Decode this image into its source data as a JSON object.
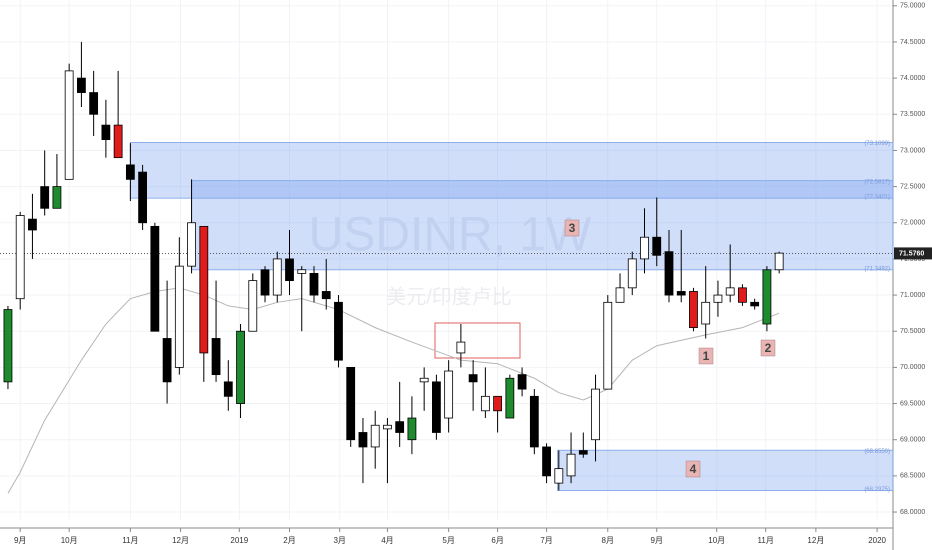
{
  "chart_data": {
    "type": "candlestick",
    "title": "USDINR, 1W",
    "subtitle": "美元/印度卢比",
    "open": [
      69.8,
      70.95,
      72.05,
      72.5,
      72.2,
      72.6,
      74.0,
      73.8,
      73.35,
      73.35,
      72.8,
      72.7,
      71.95,
      70.4,
      70.0,
      71.4,
      71.95,
      70.4,
      69.8,
      69.5,
      70.5,
      71.35,
      71.0,
      71.5,
      71.3,
      71.3,
      71.05,
      70.9,
      70.0,
      69.1,
      68.9,
      69.2,
      69.25,
      69.0,
      69.8,
      69.8,
      69.3,
      70.2,
      69.9,
      69.4,
      69.6,
      69.3,
      69.9,
      69.6,
      68.9,
      68.4,
      68.5,
      68.8,
      69.0,
      69.7,
      70.9,
      71.1,
      71.5,
      71.8,
      71.6,
      71.05,
      71.05,
      70.6,
      70.9,
      71.0,
      71.1,
      70.9,
      70.6,
      71.35
    ],
    "high": [
      70.85,
      72.15,
      72.4,
      73.0,
      72.95,
      74.2,
      74.5,
      74.1,
      73.7,
      74.1,
      73.1,
      72.8,
      72.0,
      71.2,
      71.8,
      72.6,
      71.95,
      71.2,
      70.1,
      70.6,
      71.3,
      71.4,
      71.6,
      71.9,
      71.4,
      71.4,
      71.5,
      71.0,
      70.0,
      69.3,
      69.4,
      69.3,
      69.8,
      69.6,
      70.0,
      69.9,
      70.1,
      70.6,
      70.1,
      70.0,
      69.6,
      69.9,
      70.0,
      69.7,
      68.95,
      68.85,
      69.1,
      69.1,
      69.9,
      71.0,
      71.3,
      71.6,
      72.2,
      72.35,
      71.9,
      71.9,
      71.1,
      71.4,
      71.2,
      71.7,
      71.15,
      70.95,
      71.4,
      71.6
    ],
    "low": [
      69.7,
      70.8,
      71.5,
      72.1,
      72.2,
      72.6,
      73.6,
      73.2,
      72.9,
      72.9,
      72.3,
      71.9,
      70.5,
      69.5,
      69.9,
      71.3,
      69.8,
      69.8,
      69.4,
      69.3,
      70.5,
      70.9,
      70.9,
      71.0,
      70.5,
      70.9,
      70.8,
      70.0,
      68.9,
      68.4,
      68.6,
      68.4,
      68.9,
      68.8,
      69.4,
      69.0,
      69.1,
      70.0,
      69.4,
      69.3,
      69.1,
      69.3,
      69.6,
      68.8,
      68.4,
      68.3,
      68.4,
      68.75,
      68.7,
      69.7,
      70.9,
      71.0,
      71.3,
      71.4,
      70.9,
      70.9,
      70.5,
      70.4,
      70.7,
      70.9,
      70.85,
      70.8,
      70.5,
      71.3
    ],
    "close": [
      70.8,
      72.1,
      71.9,
      72.2,
      72.5,
      74.1,
      73.8,
      73.5,
      73.15,
      72.9,
      72.6,
      72.0,
      70.5,
      69.8,
      71.4,
      72.0,
      70.2,
      69.9,
      69.6,
      70.5,
      71.2,
      71.0,
      71.5,
      71.2,
      71.35,
      71.0,
      70.95,
      70.1,
      69.0,
      68.9,
      69.2,
      69.15,
      69.1,
      69.3,
      69.85,
      69.1,
      69.95,
      70.35,
      69.8,
      69.6,
      69.4,
      69.85,
      69.7,
      68.9,
      68.5,
      68.6,
      68.8,
      68.85,
      69.7,
      70.9,
      71.1,
      71.5,
      71.8,
      71.55,
      71.0,
      71.0,
      70.55,
      70.9,
      71.0,
      71.1,
      70.9,
      70.85,
      71.35,
      71.58
    ],
    "colors": [
      "#1e8c2e",
      "#ffffff",
      "#000000",
      "#000000",
      "#1e8c2e",
      "#ffffff",
      "#000000",
      "#000000",
      "#000000",
      "#e01b1b",
      "#000000",
      "#000000",
      "#000000",
      "#000000",
      "#ffffff",
      "#ffffff",
      "#e01b1b",
      "#000000",
      "#000000",
      "#1e8c2e",
      "#ffffff",
      "#000000",
      "#ffffff",
      "#000000",
      "#ffffff",
      "#000000",
      "#000000",
      "#000000",
      "#000000",
      "#000000",
      "#ffffff",
      "#ffffff",
      "#000000",
      "#1e8c2e",
      "#ffffff",
      "#000000",
      "#ffffff",
      "#ffffff",
      "#000000",
      "#ffffff",
      "#e01b1b",
      "#1e8c2e",
      "#000000",
      "#000000",
      "#000000",
      "#ffffff",
      "#ffffff",
      "#000000",
      "#ffffff",
      "#ffffff",
      "#ffffff",
      "#ffffff",
      "#ffffff",
      "#000000",
      "#000000",
      "#000000",
      "#e01b1b",
      "#ffffff",
      "#ffffff",
      "#ffffff",
      "#e01b1b",
      "#000000",
      "#1e8c2e",
      "#ffffff"
    ],
    "ma": {
      "color": "#b5b5b5",
      "x": [
        0,
        1,
        3,
        6,
        8,
        10,
        12,
        14,
        16,
        18,
        20,
        22,
        24,
        27,
        30,
        33,
        37,
        40,
        43,
        45,
        47,
        49,
        51,
        53,
        57,
        60,
        63
      ],
      "values": [
        68.26,
        68.55,
        69.27,
        70.1,
        70.6,
        70.95,
        71.05,
        71.1,
        71.0,
        70.85,
        70.8,
        70.9,
        70.95,
        70.8,
        70.55,
        70.35,
        70.1,
        70.05,
        69.85,
        69.65,
        69.55,
        69.7,
        70.1,
        70.3,
        70.45,
        70.55,
        70.75
      ]
    },
    "zones": [
      {
        "from": 10,
        "top": 73.1099,
        "bottom": 72.3401,
        "top_label": "(73.1099)",
        "bottom_label": "(72.3401)"
      },
      {
        "from": 15,
        "top": 72.5817,
        "bottom": 71.3492,
        "top_label": "(72.5817)",
        "bottom_label": "(71.3492)"
      },
      {
        "from": 44.9,
        "top": 68.855,
        "bottom": 68.2975,
        "top_label": "(68.8550)",
        "bottom_label": "(68.2975)"
      }
    ],
    "last_price": {
      "value": 71.576,
      "label": "71.5760"
    },
    "annotations": [
      "1",
      "2",
      "3",
      "4"
    ],
    "xlim": [
      -0.65,
      72.3
    ],
    "ylim": [
      67.89,
      75.08
    ],
    "xticks": [
      {
        "value": 1,
        "label": "9月"
      },
      {
        "value": 5,
        "label": "10月"
      },
      {
        "value": 10,
        "label": "11月"
      },
      {
        "value": 14.1,
        "label": "12月"
      },
      {
        "value": 18.9,
        "label": "2019"
      },
      {
        "value": 23,
        "label": "2月"
      },
      {
        "value": 27.1,
        "label": "3月"
      },
      {
        "value": 31,
        "label": "4月"
      },
      {
        "value": 36,
        "label": "5月"
      },
      {
        "value": 40,
        "label": "6月"
      },
      {
        "value": 44,
        "label": "7月"
      },
      {
        "value": 49,
        "label": "8月"
      },
      {
        "value": 53,
        "label": "9月"
      },
      {
        "value": 57.9,
        "label": "10月"
      },
      {
        "value": 61.9,
        "label": "11月"
      },
      {
        "value": 66,
        "label": "12月"
      },
      {
        "value": 71,
        "label": "2020"
      }
    ],
    "yticks": [
      {
        "value": 68,
        "label": "68.0000"
      },
      {
        "value": 68.5,
        "label": "68.5000"
      },
      {
        "value": 69,
        "label": "69.0000"
      },
      {
        "value": 69.5,
        "label": "69.5000"
      },
      {
        "value": 70,
        "label": "70.0000"
      },
      {
        "value": 70.5,
        "label": "70.5000"
      },
      {
        "value": 71,
        "label": "71.0000"
      },
      {
        "value": 71.5,
        "label": "71.5000"
      },
      {
        "value": 72,
        "label": "72.0000"
      },
      {
        "value": 72.5,
        "label": "72.5000"
      },
      {
        "value": 73,
        "label": "73.0000"
      },
      {
        "value": 73.5,
        "label": "73.5000"
      },
      {
        "value": 74,
        "label": "74.0000"
      },
      {
        "value": 74.5,
        "label": "74.5000"
      },
      {
        "value": 75,
        "label": "75.0000"
      }
    ],
    "grid": true
  }
}
